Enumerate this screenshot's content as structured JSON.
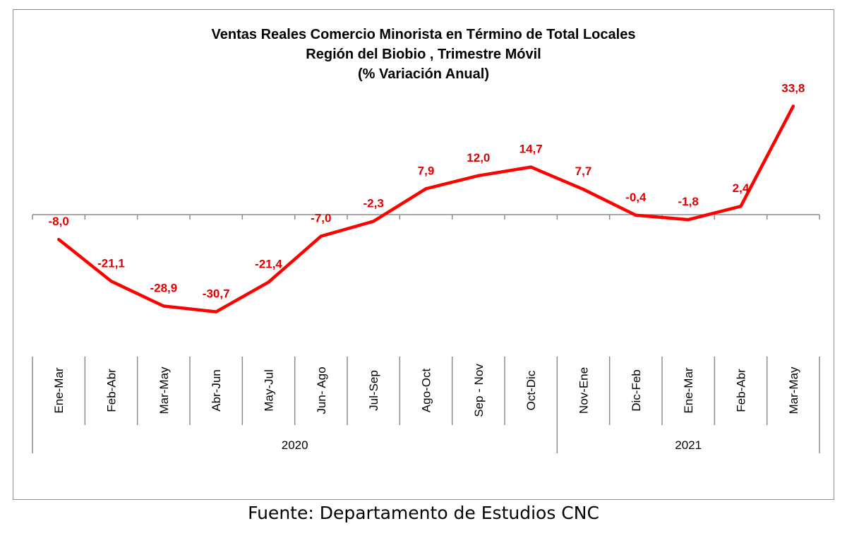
{
  "chart_data": {
    "type": "line",
    "title": [
      "Ventas Reales Comercio Minorista  en Término de Total Locales",
      "Región del Biobio , Trimestre Móvil",
      "(% Variación Anual)"
    ],
    "categories": [
      "Ene-Mar",
      "Feb-Abr",
      "Mar-May",
      "Abr-Jun",
      "May-Jul",
      "Jun- Ago",
      "Jul-Sep",
      "Ago-Oct",
      "Sep - Nov",
      "Oct-Dic",
      "Nov-Ene",
      "Dic-Feb",
      "Ene-Mar",
      "Feb-Abr",
      "Mar-May"
    ],
    "year_groups": [
      {
        "label": "2020",
        "start": 0,
        "end": 9
      },
      {
        "label": "2021",
        "start": 10,
        "end": 14
      }
    ],
    "series": [
      {
        "values": [
          -8.0,
          -21.1,
          -28.9,
          -30.7,
          -21.4,
          -7.0,
          -2.3,
          7.9,
          12.0,
          14.7,
          7.7,
          -0.4,
          -1.8,
          2.4,
          33.8
        ]
      }
    ],
    "data_labels": [
      "-8,0",
      "-21,1",
      "-28,9",
      "-30,7",
      "-21,4",
      "-7,0",
      "-2,3",
      "7,9",
      "12,0",
      "14,7",
      "7,7",
      "-0,4",
      "-1,8",
      "2,4",
      "33,8"
    ],
    "line_color": "#ff0000",
    "label_color": "#e00000",
    "legend": "none",
    "grid": false
  },
  "source": "Fuente: Departamento de Estudios CNC"
}
